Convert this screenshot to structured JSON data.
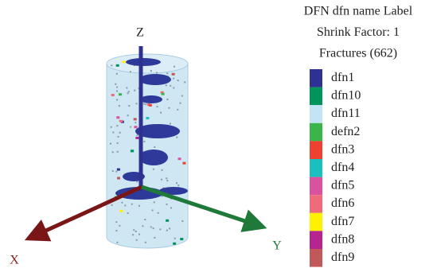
{
  "viewer": {
    "axes": {
      "x": "X",
      "y": "Y",
      "z": "Z"
    },
    "legend": {
      "title_lines": [
        "DFN dfn name Label",
        "Shrink Factor: 1",
        "Fractures (662)"
      ],
      "items": [
        {
          "name": "dfn1",
          "color": "#2e3192"
        },
        {
          "name": "dfn10",
          "color": "#00935a"
        },
        {
          "name": "dfn11",
          "color": "#c3e4f5"
        },
        {
          "name": "defn2",
          "color": "#39b54a"
        },
        {
          "name": "dfn3",
          "color": "#ef4130"
        },
        {
          "name": "dfn4",
          "color": "#1bbfbf"
        },
        {
          "name": "dfn5",
          "color": "#d9519f"
        },
        {
          "name": "dfn6",
          "color": "#f06b7a"
        },
        {
          "name": "dfn7",
          "color": "#fff200"
        },
        {
          "name": "dfn8",
          "color": "#b5248f"
        },
        {
          "name": "dfn9",
          "color": "#c1595a"
        }
      ]
    }
  }
}
